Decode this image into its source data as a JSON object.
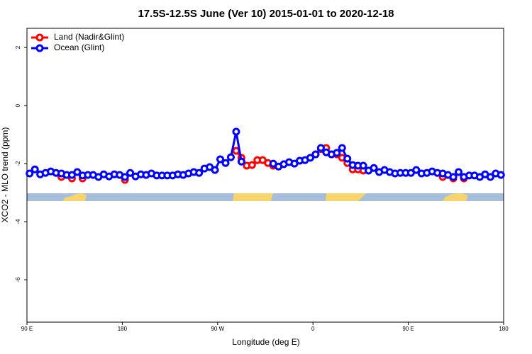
{
  "chart_data": {
    "type": "line",
    "title": "17.5S-12.5S June (Ver 10)   2015-01-01 to 2020-12-18",
    "x_label": "Longitude (deg E)",
    "y_label": "XCO2 - MLO trend (ppm)",
    "x": [
      92.5,
      97.5,
      102.5,
      107.5,
      112.5,
      117.5,
      122.5,
      127.5,
      132.5,
      137.5,
      142.5,
      147.5,
      152.5,
      157.5,
      162.5,
      167.5,
      172.5,
      177.5,
      182.5,
      187.5,
      192.5,
      197.5,
      202.5,
      207.5,
      212.5,
      217.5,
      222.5,
      227.5,
      232.5,
      237.5,
      242.5,
      247.5,
      252.5,
      257.5,
      262.5,
      267.5,
      272.5,
      277.5,
      282.5,
      287.5,
      292.5,
      297.5,
      302.5,
      307.5,
      312.5,
      317.5,
      322.5,
      327.5,
      332.5,
      337.5,
      342.5,
      347.5,
      352.5,
      357.5,
      362.5,
      367.5,
      372.5,
      377.5,
      382.5,
      387.5,
      392.5,
      397.5,
      402.5,
      407.5,
      412.5,
      417.5,
      422.5,
      427.5,
      432.5,
      437.5,
      442.5,
      447.5,
      452.5,
      457.5,
      462.5,
      467.5,
      472.5,
      477.5,
      482.5,
      487.5,
      492.5,
      497.5,
      502.5,
      507.5,
      512.5,
      517.5,
      522.5,
      527.5,
      532.5,
      537.5
    ],
    "series": [
      {
        "name": "Land (Nadir&Glint)",
        "color": "#ff0000",
        "values": [
          null,
          null,
          null,
          null,
          null,
          null,
          -2.46,
          null,
          -2.51,
          null,
          -2.51,
          null,
          null,
          null,
          null,
          null,
          null,
          null,
          -2.56,
          null,
          null,
          null,
          null,
          null,
          null,
          null,
          null,
          null,
          null,
          null,
          null,
          null,
          null,
          null,
          null,
          null,
          null,
          null,
          null,
          -1.56,
          -1.8,
          -2.07,
          -2.05,
          -1.88,
          -1.88,
          -1.98,
          -2.07,
          null,
          null,
          null,
          null,
          null,
          null,
          null,
          -1.68,
          -1.5,
          -1.46,
          -1.68,
          -1.68,
          -1.8,
          -1.98,
          -2.2,
          -2.2,
          -2.24,
          null,
          null,
          null,
          null,
          null,
          null,
          null,
          null,
          null,
          null,
          null,
          null,
          null,
          null,
          -2.46,
          null,
          -2.51,
          null,
          -2.51,
          null,
          null,
          null,
          null,
          null,
          null,
          null
        ]
      },
      {
        "name": "Ocean (Glint)",
        "color": "#0000ff",
        "values": [
          -2.34,
          -2.2,
          -2.37,
          -2.32,
          -2.27,
          -2.32,
          -2.34,
          -2.39,
          -2.39,
          -2.29,
          -2.41,
          -2.39,
          -2.39,
          -2.46,
          -2.37,
          -2.44,
          -2.37,
          -2.39,
          -2.46,
          -2.32,
          -2.44,
          -2.37,
          -2.39,
          -2.34,
          -2.41,
          -2.41,
          -2.41,
          -2.41,
          -2.37,
          -2.39,
          -2.34,
          -2.29,
          -2.32,
          -2.17,
          -2.12,
          -2.22,
          -1.85,
          -1.98,
          -1.78,
          -0.9,
          -1.93,
          null,
          null,
          null,
          null,
          null,
          -2.0,
          -2.1,
          -2.02,
          -1.95,
          -2.0,
          -1.9,
          -1.88,
          -1.8,
          -1.68,
          -1.46,
          -1.61,
          -1.68,
          -1.63,
          -1.46,
          -1.83,
          -2.05,
          -2.07,
          -2.07,
          -2.24,
          -2.15,
          -2.29,
          -2.22,
          -2.29,
          -2.34,
          -2.32,
          -2.32,
          -2.32,
          -2.22,
          -2.34,
          -2.32,
          -2.27,
          -2.32,
          -2.34,
          -2.39,
          -2.46,
          -2.29,
          -2.46,
          -2.41,
          -2.41,
          -2.46,
          -2.37,
          -2.46,
          -2.34,
          -2.39
        ]
      }
    ],
    "xlim": [
      90,
      540
    ],
    "xticks": [
      {
        "value": 90,
        "label": "90 E"
      },
      {
        "value": 180,
        "label": "180"
      },
      {
        "value": 270,
        "label": "90 W"
      },
      {
        "value": 360,
        "label": "0"
      },
      {
        "value": 450,
        "label": "90 E"
      },
      {
        "value": 540,
        "label": "180"
      }
    ],
    "ylim": [
      -7.46,
      2.66
    ],
    "yticks": [
      -6,
      -4,
      -2,
      0,
      2
    ],
    "legend": "top-left"
  }
}
